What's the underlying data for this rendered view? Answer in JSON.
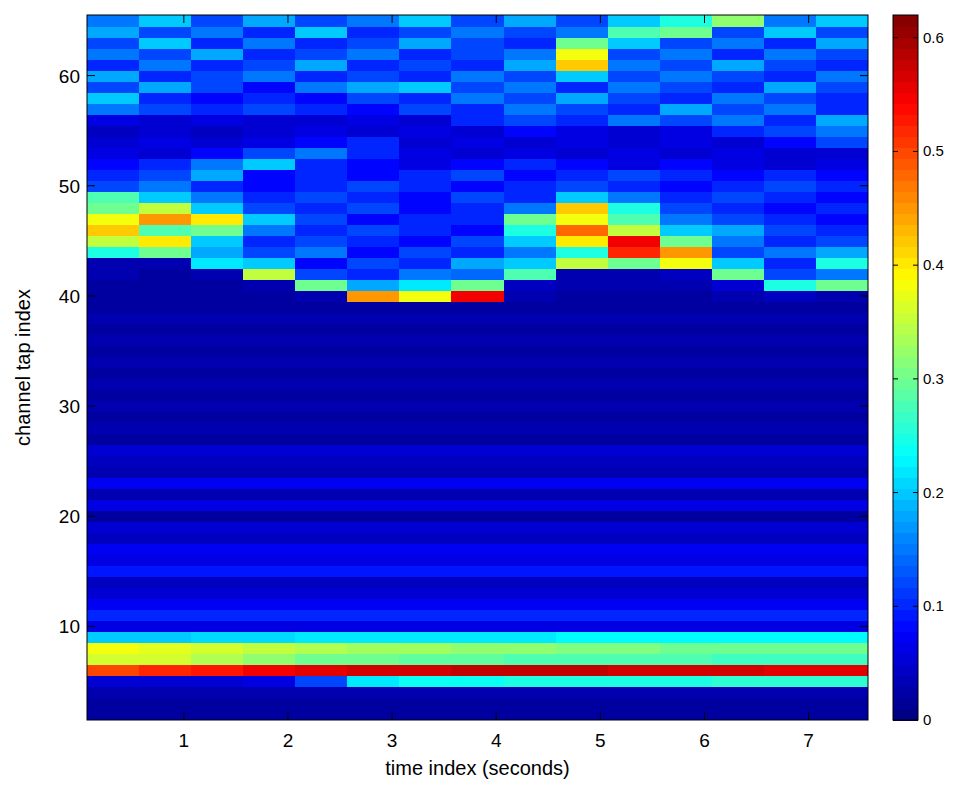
{
  "chart_data": {
    "type": "heatmap",
    "xlabel": "time index (seconds)",
    "ylabel": "channel tap index",
    "x": [
      0.32,
      0.82,
      1.32,
      1.82,
      2.32,
      2.82,
      3.32,
      3.82,
      4.32,
      4.82,
      5.32,
      5.82,
      6.32,
      6.82,
      7.32
    ],
    "y": [
      2,
      3,
      4,
      5,
      6,
      7,
      8,
      9,
      10,
      11,
      12,
      13,
      14,
      15,
      16,
      17,
      18,
      19,
      20,
      21,
      22,
      23,
      24,
      25,
      26,
      27,
      28,
      29,
      30,
      31,
      32,
      33,
      34,
      35,
      36,
      37,
      38,
      39,
      40,
      41,
      42,
      43,
      44,
      45,
      46,
      47,
      48,
      49,
      50,
      51,
      52,
      53,
      54,
      55,
      56,
      57,
      58,
      59,
      60,
      61,
      62,
      63,
      64,
      65
    ],
    "xlim": [
      0.07,
      7.57
    ],
    "ylim": [
      1.5,
      65.5
    ],
    "xticks": [
      1,
      2,
      3,
      4,
      5,
      6,
      7
    ],
    "yticks": [
      10,
      20,
      30,
      40,
      50,
      60
    ],
    "color_range": [
      0,
      0.62
    ],
    "color_ticks": [
      0,
      0.1,
      0.2,
      0.3,
      0.4,
      0.5,
      0.6
    ],
    "cells": [
      [
        0.02,
        0.02,
        0.02,
        0.02,
        0.02,
        0.02,
        0.02,
        0.02,
        0.02,
        0.02,
        0.02,
        0.02,
        0.02,
        0.02,
        0.02
      ],
      [
        0.02,
        0.02,
        0.02,
        0.02,
        0.02,
        0.02,
        0.02,
        0.02,
        0.02,
        0.02,
        0.02,
        0.02,
        0.02,
        0.02,
        0.02
      ],
      [
        0.03,
        0.03,
        0.03,
        0.03,
        0.03,
        0.03,
        0.03,
        0.03,
        0.03,
        0.03,
        0.03,
        0.03,
        0.03,
        0.03,
        0.03
      ],
      [
        0.05,
        0.05,
        0.05,
        0.06,
        0.12,
        0.22,
        0.24,
        0.24,
        0.25,
        0.25,
        0.25,
        0.25,
        0.26,
        0.26,
        0.26
      ],
      [
        0.5,
        0.52,
        0.53,
        0.55,
        0.56,
        0.57,
        0.57,
        0.58,
        0.58,
        0.58,
        0.57,
        0.57,
        0.57,
        0.56,
        0.56
      ],
      [
        0.36,
        0.36,
        0.34,
        0.32,
        0.3,
        0.3,
        0.29,
        0.29,
        0.28,
        0.28,
        0.28,
        0.28,
        0.27,
        0.27,
        0.27
      ],
      [
        0.38,
        0.37,
        0.36,
        0.35,
        0.34,
        0.33,
        0.33,
        0.32,
        0.32,
        0.31,
        0.31,
        0.3,
        0.3,
        0.3,
        0.3
      ],
      [
        0.2,
        0.2,
        0.21,
        0.21,
        0.22,
        0.22,
        0.22,
        0.22,
        0.22,
        0.23,
        0.23,
        0.23,
        0.23,
        0.23,
        0.23
      ],
      [
        0.06,
        0.06,
        0.06,
        0.06,
        0.06,
        0.06,
        0.06,
        0.06,
        0.06,
        0.06,
        0.06,
        0.06,
        0.06,
        0.06,
        0.06
      ],
      [
        0.1,
        0.1,
        0.1,
        0.1,
        0.1,
        0.1,
        0.1,
        0.1,
        0.1,
        0.1,
        0.1,
        0.1,
        0.1,
        0.1,
        0.1
      ],
      [
        0.07,
        0.07,
        0.07,
        0.07,
        0.07,
        0.07,
        0.07,
        0.07,
        0.07,
        0.07,
        0.07,
        0.07,
        0.07,
        0.07,
        0.07
      ],
      [
        0.05,
        0.05,
        0.05,
        0.05,
        0.05,
        0.05,
        0.05,
        0.05,
        0.05,
        0.05,
        0.05,
        0.05,
        0.05,
        0.05,
        0.05
      ],
      [
        0.04,
        0.04,
        0.04,
        0.04,
        0.04,
        0.04,
        0.04,
        0.04,
        0.04,
        0.04,
        0.04,
        0.04,
        0.04,
        0.04,
        0.04
      ],
      [
        0.09,
        0.09,
        0.09,
        0.09,
        0.09,
        0.09,
        0.09,
        0.09,
        0.09,
        0.09,
        0.09,
        0.09,
        0.09,
        0.09,
        0.09
      ],
      [
        0.06,
        0.06,
        0.06,
        0.06,
        0.06,
        0.06,
        0.06,
        0.06,
        0.06,
        0.06,
        0.06,
        0.06,
        0.06,
        0.06,
        0.06
      ],
      [
        0.07,
        0.07,
        0.07,
        0.07,
        0.07,
        0.07,
        0.07,
        0.07,
        0.07,
        0.07,
        0.07,
        0.07,
        0.07,
        0.07,
        0.07
      ],
      [
        0.04,
        0.04,
        0.04,
        0.04,
        0.04,
        0.04,
        0.04,
        0.04,
        0.04,
        0.04,
        0.04,
        0.04,
        0.04,
        0.04,
        0.04
      ],
      [
        0.05,
        0.05,
        0.05,
        0.05,
        0.05,
        0.05,
        0.05,
        0.05,
        0.05,
        0.05,
        0.05,
        0.05,
        0.05,
        0.05,
        0.05
      ],
      [
        0.02,
        0.02,
        0.02,
        0.02,
        0.02,
        0.02,
        0.02,
        0.02,
        0.02,
        0.02,
        0.02,
        0.02,
        0.02,
        0.02,
        0.02
      ],
      [
        0.06,
        0.06,
        0.06,
        0.06,
        0.06,
        0.06,
        0.06,
        0.06,
        0.06,
        0.06,
        0.06,
        0.06,
        0.06,
        0.06,
        0.06
      ],
      [
        0.03,
        0.03,
        0.03,
        0.03,
        0.03,
        0.03,
        0.03,
        0.03,
        0.03,
        0.03,
        0.03,
        0.03,
        0.03,
        0.03,
        0.03
      ],
      [
        0.07,
        0.07,
        0.07,
        0.07,
        0.07,
        0.07,
        0.07,
        0.07,
        0.07,
        0.07,
        0.07,
        0.07,
        0.07,
        0.07,
        0.07
      ],
      [
        0.03,
        0.03,
        0.03,
        0.03,
        0.03,
        0.03,
        0.03,
        0.03,
        0.03,
        0.03,
        0.03,
        0.03,
        0.03,
        0.03,
        0.03
      ],
      [
        0.04,
        0.04,
        0.04,
        0.04,
        0.04,
        0.04,
        0.04,
        0.04,
        0.04,
        0.04,
        0.04,
        0.04,
        0.04,
        0.04,
        0.04
      ],
      [
        0.05,
        0.05,
        0.05,
        0.05,
        0.05,
        0.05,
        0.05,
        0.05,
        0.05,
        0.05,
        0.05,
        0.05,
        0.05,
        0.05,
        0.05
      ],
      [
        0.02,
        0.02,
        0.02,
        0.02,
        0.02,
        0.02,
        0.02,
        0.02,
        0.02,
        0.02,
        0.02,
        0.02,
        0.02,
        0.02,
        0.02
      ],
      [
        0.03,
        0.03,
        0.03,
        0.03,
        0.03,
        0.03,
        0.03,
        0.03,
        0.03,
        0.03,
        0.03,
        0.03,
        0.03,
        0.03,
        0.03
      ],
      [
        0.02,
        0.02,
        0.02,
        0.02,
        0.02,
        0.02,
        0.02,
        0.02,
        0.02,
        0.02,
        0.02,
        0.02,
        0.02,
        0.02,
        0.02
      ],
      [
        0.03,
        0.03,
        0.03,
        0.03,
        0.03,
        0.03,
        0.03,
        0.03,
        0.03,
        0.03,
        0.03,
        0.03,
        0.03,
        0.03,
        0.03
      ],
      [
        0.02,
        0.02,
        0.02,
        0.02,
        0.02,
        0.02,
        0.02,
        0.02,
        0.02,
        0.02,
        0.02,
        0.02,
        0.02,
        0.02,
        0.02
      ],
      [
        0.03,
        0.03,
        0.03,
        0.03,
        0.03,
        0.03,
        0.03,
        0.03,
        0.03,
        0.03,
        0.03,
        0.03,
        0.03,
        0.03,
        0.03
      ],
      [
        0.02,
        0.02,
        0.02,
        0.02,
        0.02,
        0.02,
        0.02,
        0.02,
        0.02,
        0.02,
        0.02,
        0.02,
        0.02,
        0.02,
        0.02
      ],
      [
        0.03,
        0.03,
        0.03,
        0.03,
        0.03,
        0.03,
        0.03,
        0.03,
        0.03,
        0.03,
        0.03,
        0.03,
        0.03,
        0.03,
        0.03
      ],
      [
        0.02,
        0.02,
        0.02,
        0.02,
        0.02,
        0.02,
        0.02,
        0.02,
        0.02,
        0.02,
        0.02,
        0.02,
        0.02,
        0.02,
        0.02
      ],
      [
        0.03,
        0.03,
        0.03,
        0.03,
        0.03,
        0.03,
        0.03,
        0.03,
        0.03,
        0.03,
        0.03,
        0.03,
        0.03,
        0.03,
        0.03
      ],
      [
        0.02,
        0.02,
        0.02,
        0.02,
        0.02,
        0.02,
        0.02,
        0.02,
        0.02,
        0.02,
        0.02,
        0.02,
        0.02,
        0.02,
        0.02
      ],
      [
        0.03,
        0.03,
        0.03,
        0.03,
        0.03,
        0.03,
        0.03,
        0.03,
        0.03,
        0.03,
        0.03,
        0.03,
        0.03,
        0.03,
        0.03
      ],
      [
        0.02,
        0.02,
        0.02,
        0.02,
        0.02,
        0.02,
        0.02,
        0.02,
        0.02,
        0.02,
        0.02,
        0.02,
        0.02,
        0.02,
        0.02
      ],
      [
        0.02,
        0.02,
        0.02,
        0.02,
        0.03,
        0.45,
        0.38,
        0.55,
        0.03,
        0.02,
        0.02,
        0.02,
        0.03,
        0.04,
        0.03
      ],
      [
        0.02,
        0.02,
        0.02,
        0.03,
        0.3,
        0.18,
        0.22,
        0.3,
        0.04,
        0.03,
        0.03,
        0.03,
        0.05,
        0.25,
        0.3
      ],
      [
        0.03,
        0.02,
        0.03,
        0.35,
        0.12,
        0.1,
        0.15,
        0.14,
        0.28,
        0.03,
        0.03,
        0.04,
        0.3,
        0.12,
        0.15
      ],
      [
        0.03,
        0.03,
        0.22,
        0.2,
        0.08,
        0.12,
        0.1,
        0.18,
        0.2,
        0.35,
        0.3,
        0.38,
        0.2,
        0.1,
        0.25
      ],
      [
        0.25,
        0.3,
        0.18,
        0.12,
        0.15,
        0.08,
        0.12,
        0.1,
        0.15,
        0.25,
        0.52,
        0.45,
        0.12,
        0.15,
        0.18
      ],
      [
        0.35,
        0.4,
        0.2,
        0.1,
        0.12,
        0.1,
        0.08,
        0.12,
        0.2,
        0.4,
        0.55,
        0.3,
        0.15,
        0.1,
        0.12
      ],
      [
        0.42,
        0.28,
        0.3,
        0.15,
        0.1,
        0.12,
        0.1,
        0.08,
        0.25,
        0.48,
        0.35,
        0.2,
        0.18,
        0.12,
        0.1
      ],
      [
        0.38,
        0.45,
        0.4,
        0.2,
        0.12,
        0.08,
        0.1,
        0.1,
        0.3,
        0.38,
        0.28,
        0.15,
        0.12,
        0.1,
        0.08
      ],
      [
        0.3,
        0.35,
        0.2,
        0.12,
        0.1,
        0.12,
        0.08,
        0.1,
        0.15,
        0.42,
        0.25,
        0.12,
        0.1,
        0.08,
        0.1
      ],
      [
        0.28,
        0.2,
        0.15,
        0.1,
        0.12,
        0.1,
        0.08,
        0.12,
        0.1,
        0.2,
        0.15,
        0.1,
        0.12,
        0.1,
        0.08
      ],
      [
        0.12,
        0.15,
        0.1,
        0.08,
        0.1,
        0.12,
        0.1,
        0.08,
        0.1,
        0.12,
        0.1,
        0.08,
        0.1,
        0.12,
        0.1
      ],
      [
        0.1,
        0.12,
        0.18,
        0.08,
        0.1,
        0.08,
        0.1,
        0.12,
        0.08,
        0.1,
        0.12,
        0.1,
        0.08,
        0.1,
        0.08
      ],
      [
        0.08,
        0.1,
        0.15,
        0.2,
        0.1,
        0.08,
        0.06,
        0.08,
        0.1,
        0.08,
        0.06,
        0.08,
        0.06,
        0.05,
        0.06
      ],
      [
        0.06,
        0.05,
        0.08,
        0.12,
        0.15,
        0.1,
        0.06,
        0.05,
        0.06,
        0.05,
        0.06,
        0.05,
        0.06,
        0.05,
        0.05
      ],
      [
        0.05,
        0.06,
        0.05,
        0.06,
        0.08,
        0.1,
        0.05,
        0.06,
        0.05,
        0.06,
        0.05,
        0.06,
        0.05,
        0.08,
        0.12
      ],
      [
        0.04,
        0.05,
        0.04,
        0.05,
        0.06,
        0.05,
        0.06,
        0.05,
        0.08,
        0.06,
        0.05,
        0.06,
        0.1,
        0.12,
        0.15
      ],
      [
        0.06,
        0.05,
        0.06,
        0.05,
        0.05,
        0.06,
        0.05,
        0.1,
        0.12,
        0.1,
        0.15,
        0.12,
        0.15,
        0.1,
        0.18
      ],
      [
        0.15,
        0.12,
        0.1,
        0.12,
        0.1,
        0.08,
        0.12,
        0.1,
        0.15,
        0.12,
        0.1,
        0.18,
        0.12,
        0.15,
        0.1
      ],
      [
        0.2,
        0.1,
        0.08,
        0.1,
        0.08,
        0.12,
        0.1,
        0.15,
        0.12,
        0.18,
        0.12,
        0.1,
        0.15,
        0.12,
        0.1
      ],
      [
        0.12,
        0.18,
        0.12,
        0.08,
        0.15,
        0.18,
        0.2,
        0.12,
        0.15,
        0.1,
        0.15,
        0.12,
        0.1,
        0.18,
        0.12
      ],
      [
        0.18,
        0.1,
        0.12,
        0.15,
        0.1,
        0.12,
        0.1,
        0.15,
        0.12,
        0.2,
        0.12,
        0.15,
        0.12,
        0.1,
        0.15
      ],
      [
        0.1,
        0.15,
        0.1,
        0.12,
        0.18,
        0.1,
        0.12,
        0.1,
        0.18,
        0.42,
        0.15,
        0.12,
        0.18,
        0.12,
        0.1
      ],
      [
        0.15,
        0.12,
        0.18,
        0.1,
        0.12,
        0.15,
        0.1,
        0.12,
        0.15,
        0.38,
        0.12,
        0.15,
        0.1,
        0.15,
        0.12
      ],
      [
        0.12,
        0.2,
        0.1,
        0.15,
        0.1,
        0.12,
        0.18,
        0.12,
        0.1,
        0.3,
        0.2,
        0.12,
        0.15,
        0.1,
        0.18
      ],
      [
        0.18,
        0.12,
        0.15,
        0.1,
        0.2,
        0.1,
        0.12,
        0.15,
        0.12,
        0.15,
        0.28,
        0.3,
        0.12,
        0.2,
        0.12
      ],
      [
        0.15,
        0.2,
        0.12,
        0.18,
        0.12,
        0.15,
        0.2,
        0.12,
        0.18,
        0.12,
        0.2,
        0.25,
        0.32,
        0.15,
        0.2
      ]
    ]
  }
}
